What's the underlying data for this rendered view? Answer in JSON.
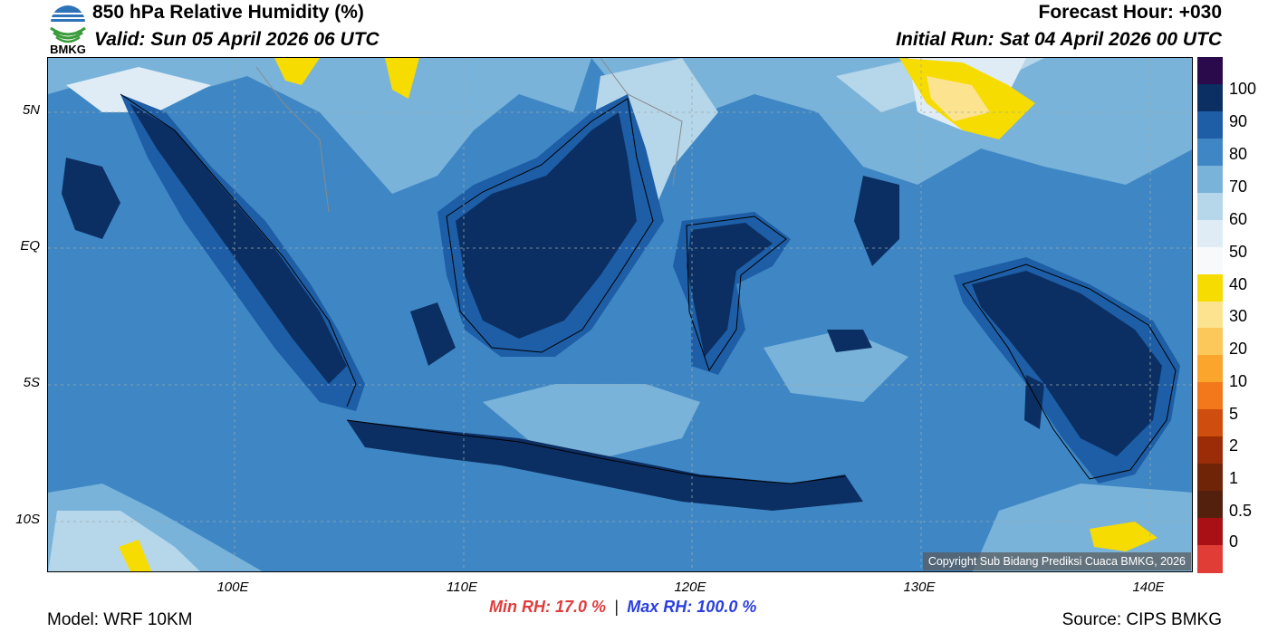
{
  "header": {
    "title": "850 hPa Relative Humidity (%)",
    "valid": "Valid: Sun 05 April 2026 06 UTC",
    "forecast_hour": "Forecast Hour: +030",
    "initial_run": "Initial Run: Sat 04 April 2026 00 UTC"
  },
  "logo": {
    "text": "BMKG",
    "icon": "bmkg-logo-icon"
  },
  "axes": {
    "lat_ticks": [
      "5N",
      "EQ",
      "5S",
      "10S"
    ],
    "lon_ticks": [
      "100E",
      "110E",
      "120E",
      "130E",
      "140E"
    ]
  },
  "colorbar": {
    "labels": [
      "100",
      "90",
      "80",
      "70",
      "60",
      "50",
      "40",
      "30",
      "20",
      "10",
      "5",
      "2",
      "1",
      "0.5",
      "0"
    ],
    "colors": [
      "#2a0a4a",
      "#0c2f63",
      "#1d5ea6",
      "#3f87c4",
      "#79b3da",
      "#b6d6ea",
      "#dfecf6",
      "#f7f9fb",
      "#f6dc00",
      "#fce38f",
      "#fcc85a",
      "#fba52c",
      "#f2781b",
      "#cf4d0e",
      "#9a2d07",
      "#6f2307",
      "#54200e",
      "#a81016",
      "#e13d37"
    ]
  },
  "map": {
    "copyright": "Copyright Sub Bidang Prediksi Cuaca BMKG, 2026"
  },
  "footer": {
    "model": "Model: WRF 10KM",
    "min_rh": "Min RH:  17.0 %",
    "separator": "|",
    "max_rh": "Max RH: 100.0 %",
    "source": "Source: CIPS BMKG"
  }
}
